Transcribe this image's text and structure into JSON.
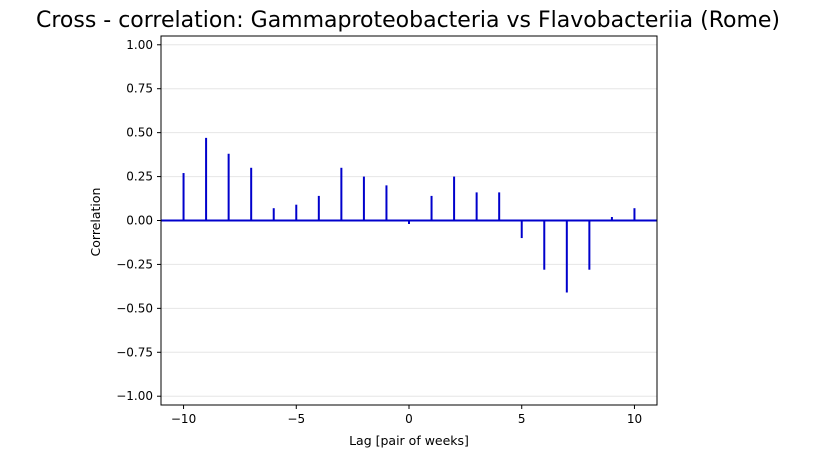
{
  "chart_data": {
    "type": "bar",
    "title": "Cross - correlation: Gammaproteobacteria vs Flavobacteriia (Rome)",
    "xlabel": "Lag [pair of weeks]",
    "ylabel": "Correlation",
    "xlim": [
      -11,
      11
    ],
    "ylim": [
      -1.05,
      1.05
    ],
    "xticks": [
      -10,
      -5,
      0,
      5,
      10
    ],
    "xtick_labels": [
      "−10",
      "−5",
      "0",
      "5",
      "10"
    ],
    "yticks": [
      1.0,
      0.75,
      0.5,
      0.25,
      0.0,
      -0.25,
      -0.5,
      -0.75,
      -1.0
    ],
    "ytick_labels": [
      "1.00",
      "0.75",
      "0.50",
      "0.25",
      "0.00",
      "−0.25",
      "−0.50",
      "−0.75",
      "−1.00"
    ],
    "grid": "horizontal",
    "x": [
      -10,
      -9,
      -8,
      -7,
      -6,
      -5,
      -4,
      -3,
      -2,
      -1,
      0,
      1,
      2,
      3,
      4,
      5,
      6,
      7,
      8,
      9,
      10
    ],
    "values": [
      0.27,
      0.47,
      0.38,
      0.3,
      0.07,
      0.09,
      0.14,
      0.3,
      0.25,
      0.2,
      -0.02,
      0.14,
      0.25,
      0.16,
      0.16,
      -0.1,
      -0.28,
      -0.41,
      -0.28,
      0.02,
      0.07
    ],
    "colors": {
      "bars": "#0000cc",
      "baseline": "#0000cc",
      "grid": "#e6e6e6",
      "axes": "#000000"
    }
  }
}
